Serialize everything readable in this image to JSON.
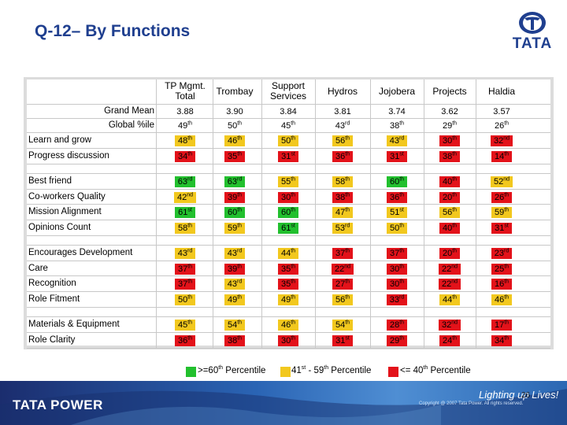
{
  "title": "Q-12– By Functions",
  "brand": {
    "logo_text": "TATA",
    "footer_brand": "TATA POWER",
    "tagline": "Lighting up Lives!",
    "copyright": "Copyright @ 2007 Tata Power. All rights reserved.",
    "page_number": "26"
  },
  "colors": {
    "green": "#22c02e",
    "yellow": "#f2c81e",
    "red": "#e3121a",
    "title": "#1f3f8f"
  },
  "columns": [
    "TP Mgmt. Total",
    "Trombay",
    "Support Services",
    "Hydros",
    "Jojobera",
    "Projects",
    "Haldia"
  ],
  "summary_rows": [
    {
      "label": "Grand Mean",
      "cells": [
        [
          "3.88",
          ""
        ],
        [
          "3.90",
          ""
        ],
        [
          "3.84",
          ""
        ],
        [
          "3.81",
          ""
        ],
        [
          "3.74",
          ""
        ],
        [
          "3.62",
          ""
        ],
        [
          "3.57",
          ""
        ]
      ]
    },
    {
      "label": "Global %ile",
      "cells": [
        [
          "49",
          "th"
        ],
        [
          "50",
          "th"
        ],
        [
          "45",
          "th"
        ],
        [
          "43",
          "rd"
        ],
        [
          "38",
          "th"
        ],
        [
          "29",
          "th"
        ],
        [
          "26",
          "th"
        ]
      ]
    }
  ],
  "rows": [
    {
      "label": "Learn and grow",
      "cells": [
        [
          "48",
          "th",
          "yellow"
        ],
        [
          "46",
          "th",
          "yellow"
        ],
        [
          "50",
          "th",
          "yellow"
        ],
        [
          "56",
          "th",
          "yellow"
        ],
        [
          "43",
          "rd",
          "yellow"
        ],
        [
          "30",
          "th",
          "red"
        ],
        [
          "32",
          "nd",
          "red"
        ]
      ]
    },
    {
      "label": "Progress discussion",
      "cells": [
        [
          "34",
          "th",
          "red"
        ],
        [
          "35",
          "th",
          "red"
        ],
        [
          "31",
          "st",
          "red"
        ],
        [
          "36",
          "th",
          "red"
        ],
        [
          "31",
          "st",
          "red"
        ],
        [
          "38",
          "th",
          "red"
        ],
        [
          "14",
          "th",
          "red"
        ]
      ]
    },
    {
      "label": "Best friend",
      "cells": [
        [
          "63",
          "rd",
          "green"
        ],
        [
          "63",
          "rd",
          "green"
        ],
        [
          "55",
          "th",
          "yellow"
        ],
        [
          "58",
          "th",
          "yellow"
        ],
        [
          "60",
          "th",
          "green"
        ],
        [
          "40",
          "th",
          "red"
        ],
        [
          "52",
          "nd",
          "yellow"
        ]
      ]
    },
    {
      "label": "Co-workers Quality",
      "cells": [
        [
          "42",
          "nd",
          "yellow"
        ],
        [
          "39",
          "th",
          "red"
        ],
        [
          "30",
          "th",
          "red"
        ],
        [
          "38",
          "th",
          "red"
        ],
        [
          "36",
          "th",
          "red"
        ],
        [
          "20",
          "th",
          "red"
        ],
        [
          "26",
          "th",
          "red"
        ]
      ]
    },
    {
      "label": "Mission Alignment",
      "cells": [
        [
          "61",
          "st",
          "green"
        ],
        [
          "60",
          "th",
          "green"
        ],
        [
          "60",
          "th",
          "green"
        ],
        [
          "47",
          "th",
          "yellow"
        ],
        [
          "51",
          "st",
          "yellow"
        ],
        [
          "56",
          "th",
          "yellow"
        ],
        [
          "59",
          "th",
          "yellow"
        ]
      ]
    },
    {
      "label": "Opinions Count",
      "cells": [
        [
          "58",
          "th",
          "yellow"
        ],
        [
          "59",
          "th",
          "yellow"
        ],
        [
          "61",
          "st",
          "green"
        ],
        [
          "53",
          "rd",
          "yellow"
        ],
        [
          "50",
          "th",
          "yellow"
        ],
        [
          "40",
          "th",
          "red"
        ],
        [
          "31",
          "st",
          "red"
        ]
      ]
    },
    {
      "label": "Encourages Development",
      "cells": [
        [
          "43",
          "rd",
          "yellow"
        ],
        [
          "43",
          "rd",
          "yellow"
        ],
        [
          "44",
          "th",
          "yellow"
        ],
        [
          "37",
          "th",
          "red"
        ],
        [
          "37",
          "th",
          "red"
        ],
        [
          "20",
          "th",
          "red"
        ],
        [
          "23",
          "rd",
          "red"
        ]
      ]
    },
    {
      "label": "Care",
      "cells": [
        [
          "37",
          "th",
          "red"
        ],
        [
          "39",
          "th",
          "red"
        ],
        [
          "35",
          "th",
          "red"
        ],
        [
          "22",
          "nd",
          "red"
        ],
        [
          "30",
          "th",
          "red"
        ],
        [
          "22",
          "nd",
          "red"
        ],
        [
          "25",
          "th",
          "red"
        ]
      ]
    },
    {
      "label": "Recognition",
      "cells": [
        [
          "37",
          "th",
          "red"
        ],
        [
          "43",
          "rd",
          "yellow"
        ],
        [
          "35",
          "th",
          "red"
        ],
        [
          "27",
          "th",
          "red"
        ],
        [
          "30",
          "th",
          "red"
        ],
        [
          "22",
          "nd",
          "red"
        ],
        [
          "16",
          "th",
          "red"
        ]
      ]
    },
    {
      "label": "Role Fitment",
      "cells": [
        [
          "50",
          "th",
          "yellow"
        ],
        [
          "49",
          "th",
          "yellow"
        ],
        [
          "49",
          "th",
          "yellow"
        ],
        [
          "56",
          "th",
          "yellow"
        ],
        [
          "33",
          "rd",
          "red"
        ],
        [
          "44",
          "th",
          "yellow"
        ],
        [
          "46",
          "th",
          "yellow"
        ]
      ]
    },
    {
      "label": "Materials & Equipment",
      "cells": [
        [
          "45",
          "th",
          "yellow"
        ],
        [
          "54",
          "th",
          "yellow"
        ],
        [
          "46",
          "th",
          "yellow"
        ],
        [
          "54",
          "th",
          "yellow"
        ],
        [
          "28",
          "th",
          "red"
        ],
        [
          "32",
          "nd",
          "red"
        ],
        [
          "17",
          "th",
          "red"
        ]
      ]
    },
    {
      "label": "Role Clarity",
      "cells": [
        [
          "36",
          "th",
          "red"
        ],
        [
          "38",
          "th",
          "red"
        ],
        [
          "30",
          "th",
          "red"
        ],
        [
          "31",
          "st",
          "red"
        ],
        [
          "29",
          "th",
          "red"
        ],
        [
          "24",
          "th",
          "red"
        ],
        [
          "34",
          "th",
          "red"
        ]
      ]
    }
  ],
  "legend": [
    {
      "color": "green",
      "pre": ">=60",
      "sup": "th",
      "post": " Percentile"
    },
    {
      "color": "yellow",
      "pre": "41",
      "sup": "st",
      "mid": " - 59",
      "sup2": "th",
      "post": " Percentile"
    },
    {
      "color": "red",
      "pre": "<= 40",
      "sup": "th",
      "post": " Percentile"
    }
  ]
}
